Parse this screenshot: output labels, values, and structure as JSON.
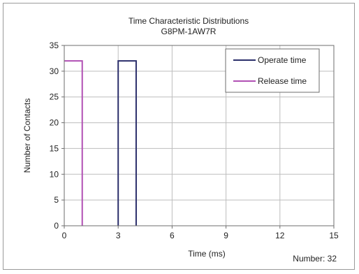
{
  "chart_data": {
    "type": "bar",
    "title": "Time Characteristic Distributions",
    "subtitle": "G8PM-1AW7R",
    "xlabel": "Time (ms)",
    "ylabel": "Number of Contacts",
    "xlim": [
      0,
      15
    ],
    "ylim": [
      0,
      35
    ],
    "x_ticks": [
      0,
      3,
      6,
      9,
      12,
      15
    ],
    "y_ticks": [
      0,
      5,
      10,
      15,
      20,
      25,
      30,
      35
    ],
    "grid": true,
    "legend_position": "top-right",
    "annotation": "Number: 32",
    "series": [
      {
        "name": "Operate time",
        "color": "#2b2f6b",
        "bins": [
          {
            "x0": 3,
            "x1": 4,
            "count": 32
          }
        ]
      },
      {
        "name": "Release time",
        "color": "#b150b4",
        "bins": [
          {
            "x0": 0,
            "x1": 1,
            "count": 32
          }
        ]
      }
    ]
  }
}
